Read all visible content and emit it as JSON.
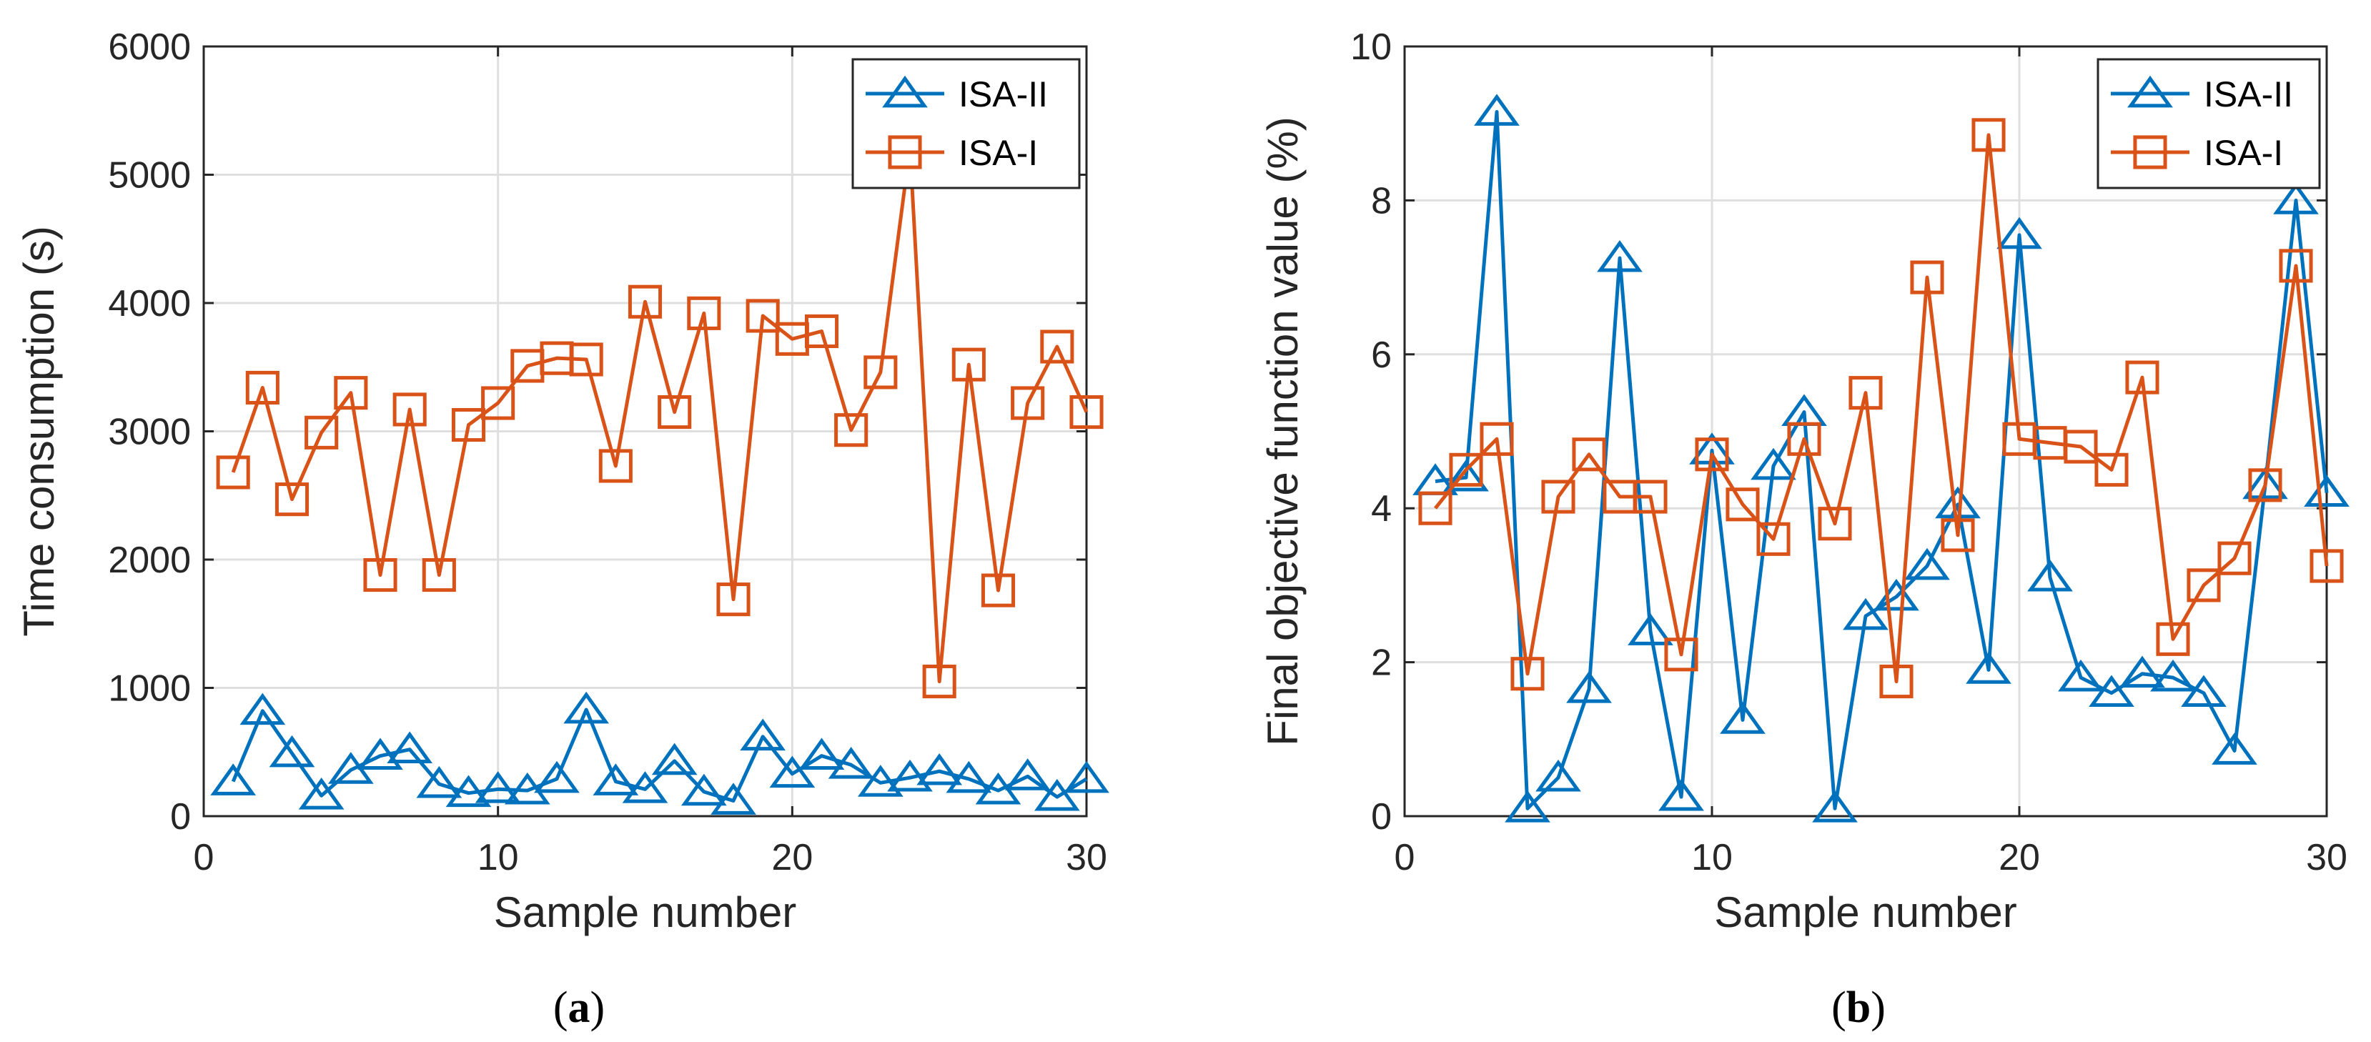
{
  "colors": {
    "isa_ii": "#0072BD",
    "isa_i": "#D95319",
    "grid": "#DFDFDF",
    "axis": "#262626"
  },
  "chart_data": [
    {
      "id": "a",
      "type": "line",
      "caption": {
        "open": "(",
        "letter": "a",
        "close": ")"
      },
      "xlabel": "Sample number",
      "ylabel": "Time consumption (s)",
      "xlim": [
        0,
        30
      ],
      "ylim": [
        0,
        6000
      ],
      "xticks": [
        0,
        10,
        20,
        30
      ],
      "yticks": [
        0,
        1000,
        2000,
        3000,
        4000,
        5000,
        6000
      ],
      "grid": true,
      "legend_position": "top-right",
      "series": [
        {
          "name": "ISA-II",
          "marker": "triangle",
          "color": "#0072BD",
          "x": [
            1,
            2,
            3,
            4,
            5,
            6,
            7,
            8,
            9,
            10,
            11,
            12,
            13,
            14,
            15,
            16,
            17,
            18,
            19,
            20,
            21,
            22,
            23,
            24,
            25,
            26,
            27,
            28,
            29,
            30
          ],
          "y": [
            270,
            820,
            490,
            160,
            360,
            470,
            520,
            250,
            180,
            210,
            200,
            290,
            830,
            270,
            210,
            430,
            190,
            120,
            620,
            330,
            470,
            400,
            260,
            300,
            350,
            290,
            200,
            310,
            150,
            290
          ]
        },
        {
          "name": "ISA-I",
          "marker": "square",
          "color": "#D95319",
          "x": [
            1,
            2,
            3,
            4,
            5,
            6,
            7,
            8,
            9,
            10,
            11,
            12,
            13,
            14,
            15,
            16,
            17,
            18,
            19,
            20,
            21,
            22,
            23,
            24,
            25,
            26,
            27,
            28,
            29,
            30
          ],
          "y": [
            2680,
            3340,
            2470,
            2990,
            3300,
            1880,
            3170,
            1880,
            3050,
            3220,
            3510,
            3570,
            3560,
            2730,
            4010,
            3150,
            3920,
            1690,
            3900,
            3720,
            3780,
            3010,
            3460,
            5210,
            1050,
            3520,
            1760,
            3220,
            3660,
            3150
          ]
        }
      ]
    },
    {
      "id": "b",
      "type": "line",
      "caption": {
        "open": "(",
        "letter": "b",
        "close": ")"
      },
      "xlabel": "Sample number",
      "ylabel": "Final objective function value (%)",
      "xlim": [
        0,
        30
      ],
      "ylim": [
        0,
        10
      ],
      "xticks": [
        0,
        10,
        20,
        30
      ],
      "yticks": [
        0,
        2,
        4,
        6,
        8,
        10
      ],
      "grid": true,
      "legend_position": "top-right",
      "series": [
        {
          "name": "ISA-II",
          "marker": "triangle",
          "color": "#0072BD",
          "x": [
            1,
            2,
            3,
            4,
            5,
            6,
            7,
            8,
            9,
            10,
            11,
            12,
            13,
            14,
            15,
            16,
            17,
            18,
            19,
            20,
            21,
            22,
            23,
            24,
            25,
            26,
            27,
            28,
            29,
            30
          ],
          "y": [
            4.35,
            4.4,
            9.15,
            0.1,
            0.5,
            1.65,
            7.25,
            2.4,
            0.25,
            4.75,
            1.25,
            4.55,
            5.25,
            0.1,
            2.6,
            2.85,
            3.25,
            4.05,
            1.9,
            7.55,
            3.1,
            1.8,
            1.6,
            1.85,
            1.8,
            1.6,
            0.85,
            4.3,
            8.0,
            4.2
          ]
        },
        {
          "name": "ISA-I",
          "marker": "square",
          "color": "#D95319",
          "x": [
            1,
            2,
            3,
            4,
            5,
            6,
            7,
            8,
            9,
            10,
            11,
            12,
            13,
            14,
            15,
            16,
            17,
            18,
            19,
            20,
            21,
            22,
            23,
            24,
            25,
            26,
            27,
            28,
            29,
            30
          ],
          "y": [
            4.0,
            4.5,
            4.9,
            1.85,
            4.15,
            4.7,
            4.15,
            4.15,
            2.1,
            4.7,
            4.05,
            3.6,
            4.9,
            3.8,
            5.5,
            1.75,
            7.0,
            3.65,
            8.85,
            4.9,
            4.85,
            4.8,
            4.5,
            5.7,
            2.3,
            3.0,
            3.35,
            4.3,
            7.15,
            3.25
          ]
        }
      ]
    }
  ]
}
